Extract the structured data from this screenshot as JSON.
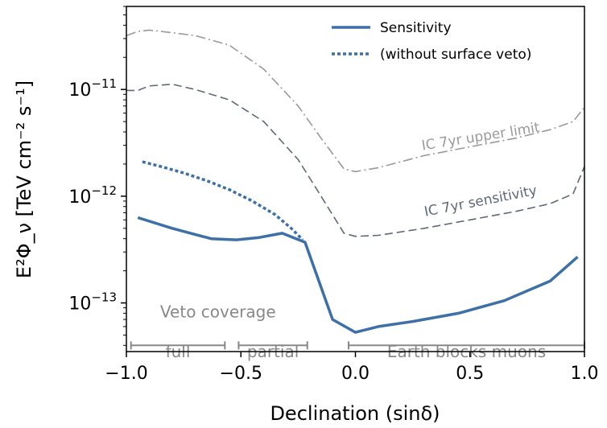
{
  "chart_data": {
    "type": "line",
    "xlabel": "Declination (sinδ)",
    "ylabel": "E²Φ_ν [TeV cm⁻² s⁻¹]",
    "xlim": [
      -1.0,
      1.0
    ],
    "ylim": [
      3.5e-14,
      6e-11
    ],
    "yscale": "log",
    "grid": false,
    "legend_position": "top-right",
    "x_ticks": [
      "−1.0",
      "−0.5",
      "0.0",
      "0.5",
      "1.0"
    ],
    "y_ticks": [
      {
        "value": 1e-13,
        "label": "10",
        "exp": "−13"
      },
      {
        "value": 1e-12,
        "label": "10",
        "exp": "−12"
      },
      {
        "value": 1e-11,
        "label": "10",
        "exp": "−11"
      }
    ],
    "series": [
      {
        "name": "Sensitivity",
        "color": "#3d6fa8",
        "style": "solid",
        "in_legend": true,
        "x": [
          -0.95,
          -0.8,
          -0.63,
          -0.52,
          -0.42,
          -0.32,
          -0.22,
          -0.1,
          0.0,
          0.1,
          0.25,
          0.45,
          0.65,
          0.85,
          0.97
        ],
        "y": [
          6.3e-13,
          5e-13,
          4e-13,
          3.9e-13,
          4.1e-13,
          4.5e-13,
          3.7e-13,
          7e-14,
          5.3e-14,
          6e-14,
          6.7e-14,
          8e-14,
          1.05e-13,
          1.6e-13,
          2.7e-13
        ]
      },
      {
        "name": "(without surface veto)",
        "color": "#3d6fa8",
        "style": "dotted",
        "in_legend": true,
        "x": [
          -0.93,
          -0.85,
          -0.75,
          -0.65,
          -0.55,
          -0.45,
          -0.35,
          -0.28,
          -0.23
        ],
        "y": [
          2.1e-12,
          1.9e-12,
          1.65e-12,
          1.4e-12,
          1.15e-12,
          9e-13,
          6.7e-13,
          5e-13,
          3.9e-13
        ]
      },
      {
        "name": "IC 7yr upper limit",
        "color": "#999999",
        "style": "dashdot",
        "in_legend": false,
        "x": [
          -1.0,
          -0.95,
          -0.9,
          -0.8,
          -0.7,
          -0.55,
          -0.4,
          -0.25,
          -0.15,
          -0.05,
          0.0,
          0.1,
          0.3,
          0.5,
          0.7,
          0.85,
          0.95,
          1.0
        ],
        "y": [
          3.2e-11,
          3.5e-11,
          3.6e-11,
          3.4e-11,
          3.2e-11,
          2.6e-11,
          1.55e-11,
          7e-12,
          3.5e-12,
          1.8e-12,
          1.7e-12,
          1.85e-12,
          2.4e-12,
          2.9e-12,
          3.5e-12,
          4.2e-12,
          5e-12,
          6.8e-12
        ]
      },
      {
        "name": "IC 7yr sensitivity",
        "color": "#5f6878",
        "style": "dashed",
        "in_legend": false,
        "x": [
          -1.0,
          -0.95,
          -0.9,
          -0.8,
          -0.7,
          -0.55,
          -0.4,
          -0.25,
          -0.15,
          -0.05,
          0.0,
          0.1,
          0.3,
          0.5,
          0.7,
          0.85,
          0.95,
          1.0
        ],
        "y": [
          9.8e-12,
          9.8e-12,
          1.08e-11,
          1.12e-11,
          1e-11,
          8e-12,
          5e-12,
          2.2e-12,
          1e-12,
          4.5e-13,
          4.2e-13,
          4.3e-13,
          5e-13,
          6e-13,
          7.2e-13,
          8.5e-13,
          1.05e-12,
          1.9e-12
        ]
      }
    ],
    "curve_labels": [
      {
        "text": "IC 7yr upper limit",
        "x": 0.55,
        "y": 3.3e-12,
        "angle": -9,
        "color": "#999999"
      },
      {
        "text": "IC 7yr sensitivity",
        "x": 0.55,
        "y": 8.2e-13,
        "angle": -11,
        "color": "#5f6878"
      }
    ],
    "veto": {
      "title": "Veto coverage",
      "title_x": -0.6,
      "title_y": 7.3e-14,
      "bar_y": 4e-14,
      "label_y": 3.1e-14,
      "color": "#888888",
      "regions": [
        {
          "label": "full",
          "x0": -0.98,
          "x1": -0.57
        },
        {
          "label": "partial",
          "x0": -0.51,
          "x1": -0.21
        },
        {
          "label": "Earth blocks muons",
          "x0": -0.03,
          "x1": 1.0
        }
      ]
    }
  }
}
